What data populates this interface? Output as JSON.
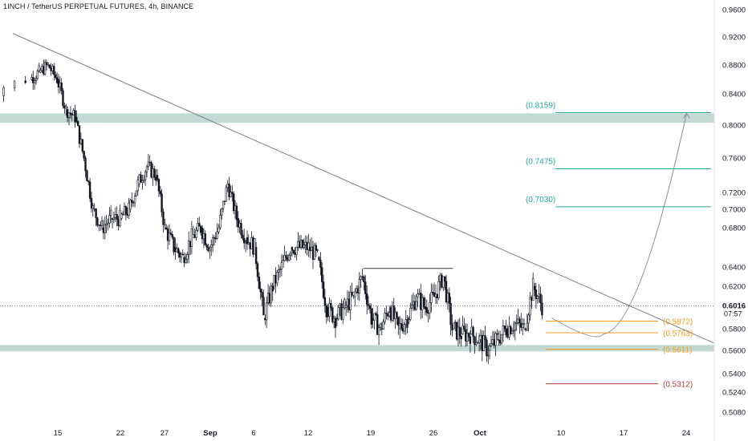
{
  "header": {
    "title": "1INCH / TetherUS PERPETUAL FUTURES, 4h, BINANCE"
  },
  "colors": {
    "background": "#ffffff",
    "candle": "#131722",
    "zone": "#b9d3cc",
    "trendline": "#7b7e85",
    "target": "#26a69a",
    "support": "#f59c1a",
    "stop": "#b23b3b",
    "axis_text": "#131722"
  },
  "price_axis": {
    "ticks": [
      "0.9600",
      "0.9200",
      "0.8800",
      "0.8400",
      "0.8000",
      "0.7600",
      "0.7200",
      "0.7000",
      "0.6800",
      "0.6400",
      "0.6200",
      "0.5800",
      "0.5600",
      "0.5400",
      "0.5240",
      "0.5080"
    ],
    "current_price": "0.6016",
    "countdown": "07:57"
  },
  "time_axis": {
    "labels": [
      "15",
      "22",
      "27",
      "Sep",
      "6",
      "12",
      "19",
      "26",
      "Oct",
      "10",
      "17",
      "24"
    ]
  },
  "chart_data": {
    "type": "candlestick",
    "symbol": "1INCH / TetherUS PERPETUAL FUTURES",
    "interval": "4h",
    "exchange": "BINANCE",
    "last_price": 0.6016,
    "close_series": [
      {
        "date": "Aug 11",
        "close": 0.83
      },
      {
        "date": "Aug 12",
        "close": 0.86
      },
      {
        "date": "Aug 13",
        "close": 0.87
      },
      {
        "date": "Aug 14",
        "close": 0.88
      },
      {
        "date": "Aug 15",
        "close": 0.86
      },
      {
        "date": "Aug 16",
        "close": 0.82
      },
      {
        "date": "Aug 17",
        "close": 0.81
      },
      {
        "date": "Aug 18",
        "close": 0.76
      },
      {
        "date": "Aug 19",
        "close": 0.7
      },
      {
        "date": "Aug 20",
        "close": 0.68
      },
      {
        "date": "Aug 21",
        "close": 0.69
      },
      {
        "date": "Aug 22",
        "close": 0.69
      },
      {
        "date": "Aug 23",
        "close": 0.7
      },
      {
        "date": "Aug 24",
        "close": 0.73
      },
      {
        "date": "Aug 25",
        "close": 0.75
      },
      {
        "date": "Aug 26",
        "close": 0.74
      },
      {
        "date": "Aug 27",
        "close": 0.68
      },
      {
        "date": "Aug 28",
        "close": 0.66
      },
      {
        "date": "Aug 29",
        "close": 0.65
      },
      {
        "date": "Aug 30",
        "close": 0.67
      },
      {
        "date": "Aug 31",
        "close": 0.68
      },
      {
        "date": "Sep 1",
        "close": 0.66
      },
      {
        "date": "Sep 2",
        "close": 0.68
      },
      {
        "date": "Sep 3",
        "close": 0.73
      },
      {
        "date": "Sep 4",
        "close": 0.69
      },
      {
        "date": "Sep 5",
        "close": 0.67
      },
      {
        "date": "Sep 6",
        "close": 0.66
      },
      {
        "date": "Sep 7",
        "close": 0.59
      },
      {
        "date": "Sep 8",
        "close": 0.62
      },
      {
        "date": "Sep 9",
        "close": 0.64
      },
      {
        "date": "Sep 10",
        "close": 0.66
      },
      {
        "date": "Sep 11",
        "close": 0.66
      },
      {
        "date": "Sep 12",
        "close": 0.66
      },
      {
        "date": "Sep 13",
        "close": 0.65
      },
      {
        "date": "Sep 14",
        "close": 0.6
      },
      {
        "date": "Sep 15",
        "close": 0.59
      },
      {
        "date": "Sep 16",
        "close": 0.6
      },
      {
        "date": "Sep 17",
        "close": 0.61
      },
      {
        "date": "Sep 18",
        "close": 0.63
      },
      {
        "date": "Sep 19",
        "close": 0.59
      },
      {
        "date": "Sep 20",
        "close": 0.58
      },
      {
        "date": "Sep 21",
        "close": 0.6
      },
      {
        "date": "Sep 22",
        "close": 0.58
      },
      {
        "date": "Sep 23",
        "close": 0.59
      },
      {
        "date": "Sep 24",
        "close": 0.61
      },
      {
        "date": "Sep 25",
        "close": 0.6
      },
      {
        "date": "Sep 26",
        "close": 0.61
      },
      {
        "date": "Sep 27",
        "close": 0.63
      },
      {
        "date": "Sep 28",
        "close": 0.58
      },
      {
        "date": "Sep 29",
        "close": 0.575
      },
      {
        "date": "Sep 30",
        "close": 0.575
      },
      {
        "date": "Oct 1",
        "close": 0.57
      },
      {
        "date": "Oct 2",
        "close": 0.56
      },
      {
        "date": "Oct 3",
        "close": 0.57
      },
      {
        "date": "Oct 4",
        "close": 0.58
      },
      {
        "date": "Oct 5",
        "close": 0.585
      },
      {
        "date": "Oct 6",
        "close": 0.58
      },
      {
        "date": "Oct 7",
        "close": 0.62
      },
      {
        "date": "Oct 8",
        "close": 0.6016
      }
    ],
    "zones": [
      {
        "from": 0.803,
        "to": 0.815
      },
      {
        "from": 0.56,
        "to": 0.565
      }
    ],
    "trendline": [
      {
        "date": "Aug 10",
        "price": 0.925
      },
      {
        "date": "Oct 27",
        "price": 0.567
      }
    ],
    "resistance_segment": {
      "from_date": "Sep 18",
      "to_date": "Sep 28",
      "price": 0.6385
    },
    "projection": {
      "from_date": "Oct 9",
      "to_date": "Oct 24",
      "start_price": 0.59,
      "low_price": 0.575,
      "end_price": 0.815
    },
    "levels": [
      {
        "label": "(0.8159)",
        "price": 0.8159,
        "kind": "target"
      },
      {
        "label": "(0.7475)",
        "price": 0.7475,
        "kind": "target"
      },
      {
        "label": "(0.7030)",
        "price": 0.703,
        "kind": "target"
      },
      {
        "label": "(0.5872)",
        "price": 0.5872,
        "kind": "support"
      },
      {
        "label": "(0.5763)",
        "price": 0.5763,
        "kind": "support"
      },
      {
        "label": "(0.5611)",
        "price": 0.5611,
        "kind": "support"
      },
      {
        "label": "(0.5312)",
        "price": 0.5312,
        "kind": "stop"
      }
    ],
    "y_tick_labels": [
      "0.9600",
      "0.9200",
      "0.8800",
      "0.8400",
      "0.8000",
      "0.7600",
      "0.7200",
      "0.7000",
      "0.6800",
      "0.6400",
      "0.6200",
      "0.5800",
      "0.5600",
      "0.5400",
      "0.5240",
      "0.5080"
    ],
    "x_tick_labels": [
      "15",
      "22",
      "27",
      "Sep",
      "6",
      "12",
      "19",
      "26",
      "Oct",
      "10",
      "17",
      "24"
    ],
    "grid": false
  }
}
